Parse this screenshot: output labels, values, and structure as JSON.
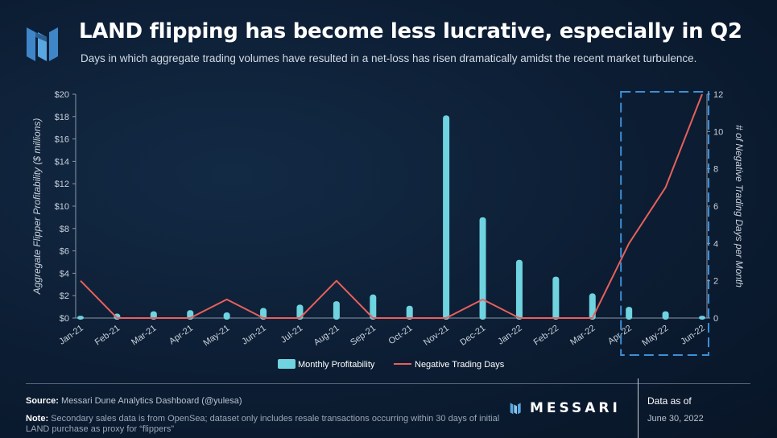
{
  "header": {
    "logo_icon": "messari-m-logo-icon",
    "title": "LAND flipping has become less lucrative, especially in Q2",
    "subtitle": "Days in which aggregate trading volumes have resulted in a net-loss has risen dramatically amidst the recent market turbulence."
  },
  "chart_data": {
    "type": "bar",
    "categories": [
      "Jan-21",
      "Feb-21",
      "Mar-21",
      "Apr-21",
      "May-21",
      "Jun-21",
      "Jul-21",
      "Aug-21",
      "Sep-21",
      "Oct-21",
      "Nov-21",
      "Dec-21",
      "Jan-22",
      "Feb-22",
      "Mar-22",
      "Apr-22",
      "May-22",
      "Jun-22"
    ],
    "series": [
      {
        "name": "Monthly Profitability",
        "type": "bar",
        "axis": "left",
        "color": "#6fd3e0",
        "values": [
          0.2,
          0.4,
          0.6,
          0.7,
          0.5,
          0.9,
          1.2,
          1.5,
          2.1,
          1.1,
          18.1,
          9.0,
          5.2,
          3.7,
          2.2,
          1.0,
          0.6,
          0.2
        ]
      },
      {
        "name": "Negative Trading Days",
        "type": "line",
        "axis": "right",
        "color": "#e8605c",
        "values": [
          2,
          0,
          0,
          0,
          1,
          0,
          0,
          2,
          0,
          0,
          0,
          1,
          0,
          0,
          0,
          4,
          7,
          12
        ]
      }
    ],
    "y_left": {
      "label": "Aggregate Flipper Profitability ($ millions)",
      "lim": [
        0,
        20
      ],
      "ticks": [
        0,
        2,
        4,
        6,
        8,
        10,
        12,
        14,
        16,
        18,
        20
      ],
      "tick_labels": [
        "$0",
        "$2",
        "$4",
        "$6",
        "$8",
        "$10",
        "$12",
        "$14",
        "$16",
        "$18",
        "$20"
      ]
    },
    "y_right": {
      "label": "# of Negative Trading Days per Month",
      "lim": [
        0,
        12
      ],
      "ticks": [
        0,
        2,
        4,
        6,
        8,
        10,
        12
      ],
      "tick_labels": [
        "0",
        "2",
        "4",
        "6",
        "8",
        "10",
        "12"
      ]
    },
    "highlight_categories": [
      "Apr-22",
      "May-22",
      "Jun-22"
    ],
    "legend": {
      "position": "bottom-center",
      "items": [
        "Monthly Profitability",
        "Negative Trading Days"
      ]
    },
    "grid": false
  },
  "footer": {
    "source_label": "Source:",
    "source_text": "Messari Dune Analytics Dashboard (@yulesa)",
    "note_label": "Note:",
    "note_text": "Secondary sales data is from OpenSea; dataset only includes resale transactions occurring within 30 days of initial LAND purchase as proxy for “flippers”",
    "brand_icon": "messari-m-logo-icon",
    "brand_name": "MESSARI",
    "data_as_of_label": "Data as of",
    "data_as_of_date": "June 30, 2022"
  }
}
